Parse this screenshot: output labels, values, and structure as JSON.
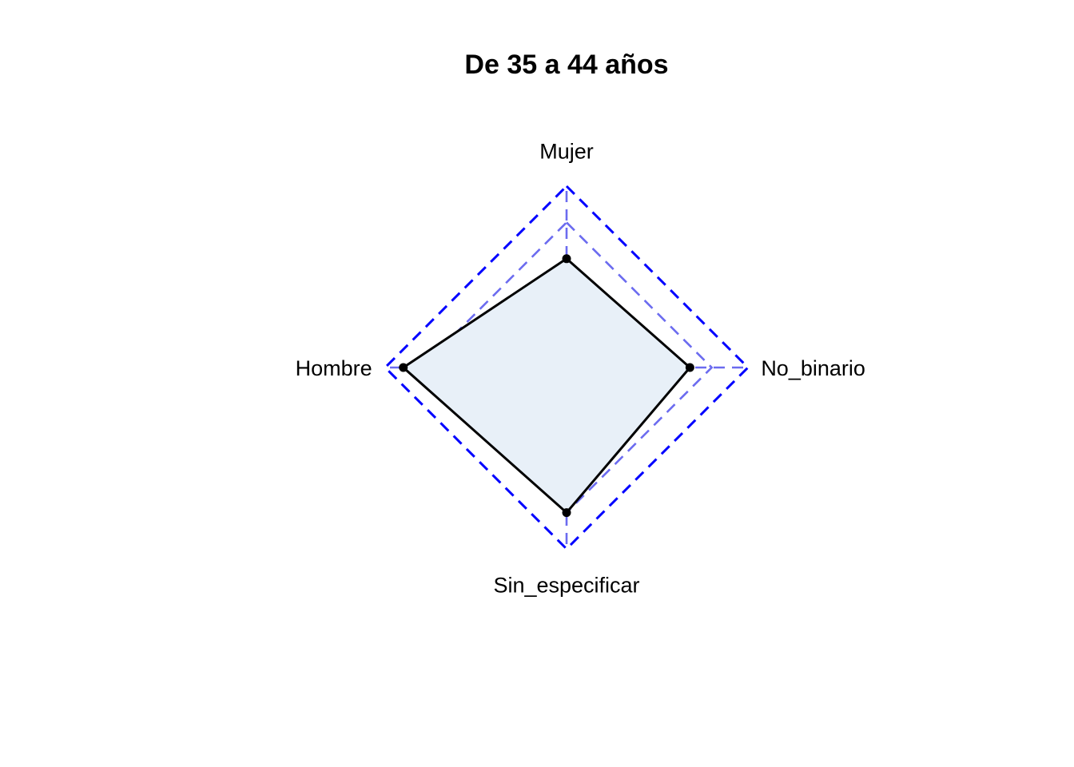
{
  "chart_data": {
    "type": "radar",
    "title": "De 35 a 44 años",
    "axes": [
      "Mujer",
      "No_binario",
      "Sin_especificar",
      "Hombre"
    ],
    "values": [
      0.6,
      0.68,
      0.8,
      0.9
    ],
    "range": [
      0,
      1
    ],
    "grid_levels": [
      0.2,
      0.4,
      0.6,
      0.8,
      1.0
    ],
    "grid_style": "dashed",
    "grid_color": "#0000ff",
    "fill_color": "#e8f0f8",
    "line_color": "#000000",
    "legend": "none"
  }
}
